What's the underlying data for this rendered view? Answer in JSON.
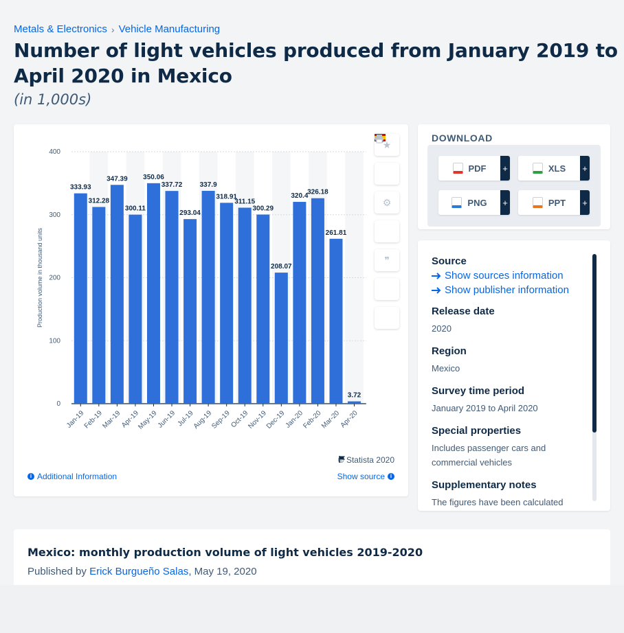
{
  "breadcrumb": {
    "items": [
      {
        "label": "Metals & Electronics"
      },
      {
        "label": "Vehicle Manufacturing"
      }
    ],
    "separator": "›"
  },
  "page": {
    "title": "Number of light vehicles produced from January 2019 to April 2020 in Mexico",
    "subtitle": "(in 1,000s)"
  },
  "chart_footer": {
    "copyright": "© Statista 2020",
    "additional_info": "Additional Information",
    "show_source": "Show source"
  },
  "download": {
    "title": "DOWNLOAD",
    "buttons": [
      {
        "label": "PDF",
        "color": "#e2352b"
      },
      {
        "label": "XLS",
        "color": "#2f9e44"
      },
      {
        "label": "PNG",
        "color": "#2b7bd6"
      },
      {
        "label": "PPT",
        "color": "#e8761e"
      }
    ],
    "plus": "+"
  },
  "source_panel": {
    "source_label": "Source",
    "show_sources": "Show sources information",
    "show_publisher": "Show publisher information",
    "release_label": "Release date",
    "release_value": "2020",
    "region_label": "Region",
    "region_value": "Mexico",
    "survey_label": "Survey time period",
    "survey_value": "January 2019 to April 2020",
    "special_label": "Special properties",
    "special_value": "Includes passenger cars and commercial vehicles",
    "supp_label": "Supplementary notes",
    "supp_value": "The figures have been calculated"
  },
  "article": {
    "title": "Mexico: monthly production volume of light vehicles 2019-2020",
    "published_prefix": "Published by ",
    "author": "Erick Burgueño Salas",
    "date": ", May 19, 2020"
  },
  "colors": {
    "bar": "#2e6fd9",
    "accent": "#0666e5",
    "dark": "#0f2a46"
  },
  "chart_data": {
    "type": "bar",
    "categories": [
      "Jan-19",
      "Feb-19",
      "Mar-19",
      "Apr-19",
      "May-19",
      "Jun-19",
      "Jul-19",
      "Aug-19",
      "Sep-19",
      "Oct-19",
      "Nov-19",
      "Dec-19",
      "Jan-20",
      "Feb-20",
      "Mar-20",
      "Apr-20"
    ],
    "values": [
      333.93,
      312.28,
      347.39,
      300.11,
      350.06,
      337.72,
      293.04,
      337.9,
      318.91,
      311.15,
      300.29,
      208.07,
      320.4,
      326.18,
      261.81,
      3.72
    ],
    "value_labels": [
      "333.93",
      "312.28",
      "347.39",
      "300.11",
      "350.06",
      "337.72",
      "293.04",
      "337.9",
      "318.91",
      "311.15",
      "300.29",
      "208.07",
      "320.4",
      "326.18",
      "261.81",
      "3.72"
    ],
    "ylabel": "Production volume in thousand units",
    "ylim": [
      0,
      400
    ],
    "yticks": [
      "0",
      "100",
      "200",
      "300",
      "400"
    ],
    "grid": true
  }
}
